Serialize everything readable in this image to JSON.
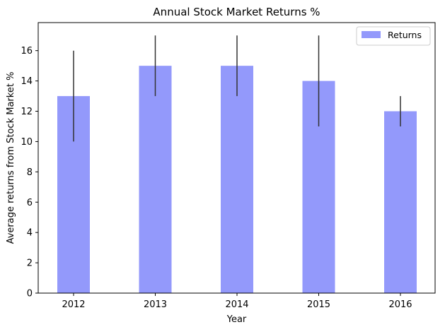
{
  "chart_data": {
    "type": "bar",
    "title": "Annual Stock Market Returns %",
    "xlabel": "Year",
    "ylabel": "Average returns from Stock Market %",
    "categories": [
      "2012",
      "2013",
      "2014",
      "2015",
      "2016"
    ],
    "series": [
      {
        "name": "Returns",
        "values": [
          13,
          15,
          15,
          14,
          12
        ],
        "error_low": [
          10,
          13,
          13,
          11,
          11
        ],
        "error_high": [
          16,
          17,
          17,
          17,
          13
        ],
        "color": "#9399fb"
      }
    ],
    "ylim": [
      0,
      17.85
    ],
    "yticks": [
      "0",
      "2",
      "4",
      "6",
      "8",
      "10",
      "12",
      "14",
      "16"
    ],
    "error_bar_color": "#333333",
    "grid": false,
    "legend_position": "top-right"
  }
}
